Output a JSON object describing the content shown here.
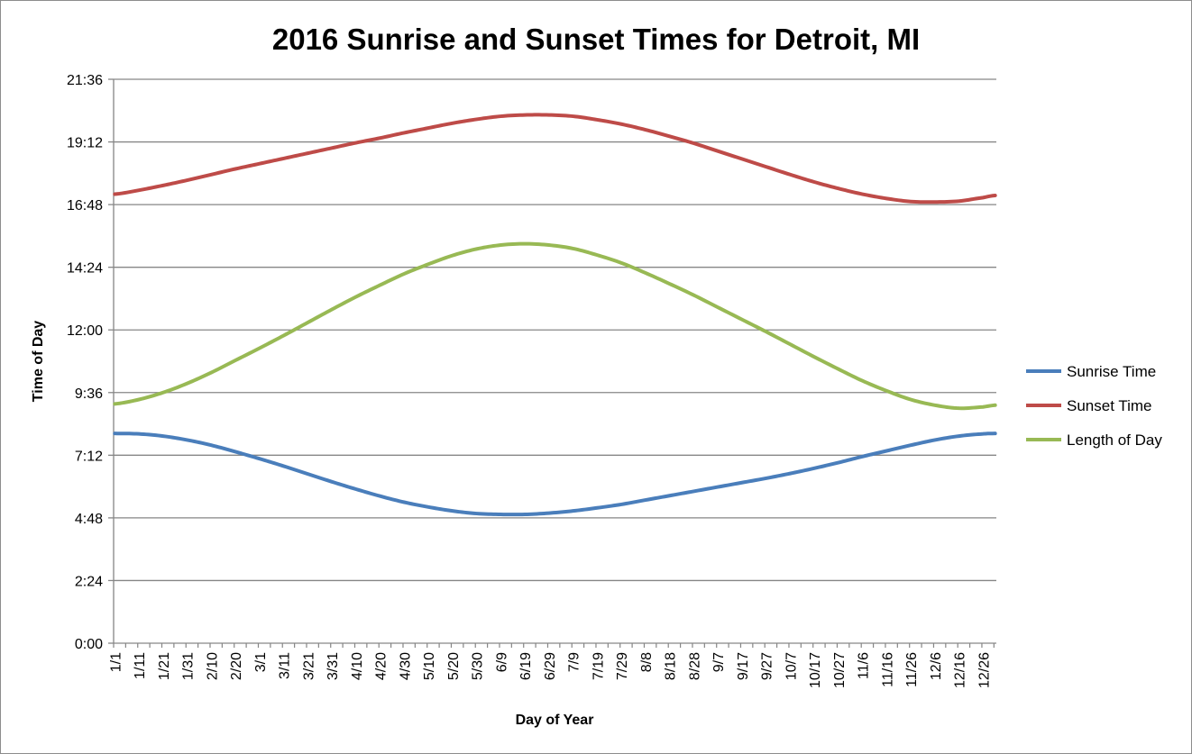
{
  "chart_data": {
    "type": "line",
    "title": "2016 Sunrise and Sunset Times for Detroit, MI",
    "xlabel": "Day of Year",
    "ylabel": "Time of Day",
    "ylim": [
      "0:00",
      "21:36"
    ],
    "y_ticks": [
      "0:00",
      "2:24",
      "4:48",
      "7:12",
      "9:36",
      "12:00",
      "14:24",
      "16:48",
      "19:12",
      "21:36"
    ],
    "x_ticks": [
      "1/1",
      "1/11",
      "1/21",
      "1/31",
      "2/10",
      "2/20",
      "3/1",
      "3/11",
      "3/21",
      "3/31",
      "4/10",
      "4/20",
      "4/30",
      "5/10",
      "5/20",
      "5/30",
      "6/9",
      "6/19",
      "6/29",
      "7/9",
      "7/19",
      "7/29",
      "8/8",
      "8/18",
      "8/28",
      "9/7",
      "9/17",
      "9/27",
      "10/7",
      "10/17",
      "10/27",
      "11/6",
      "11/16",
      "11/26",
      "12/6",
      "12/16",
      "12/26"
    ],
    "grid": true,
    "legend_position": "right",
    "x": [
      "1/1",
      "1/11",
      "1/21",
      "1/31",
      "2/10",
      "2/20",
      "3/1",
      "3/11",
      "3/21",
      "3/31",
      "4/10",
      "4/20",
      "4/30",
      "5/10",
      "5/20",
      "5/30",
      "6/9",
      "6/19",
      "6/29",
      "7/9",
      "7/19",
      "7/29",
      "8/8",
      "8/18",
      "8/28",
      "9/7",
      "9/17",
      "9/27",
      "10/7",
      "10/17",
      "10/27",
      "11/6",
      "11/16",
      "11/26",
      "12/6",
      "12/16",
      "12/26",
      "12/31"
    ],
    "series": [
      {
        "name": "Sunrise Time",
        "color": "#4a7ebb",
        "values": [
          "8:02",
          "8:01",
          "7:56",
          "7:47",
          "7:35",
          "7:20",
          "7:04",
          "6:47",
          "6:29",
          "6:11",
          "5:54",
          "5:38",
          "5:24",
          "5:13",
          "5:04",
          "4:58",
          "4:56",
          "4:56",
          "4:59",
          "5:04",
          "5:11",
          "5:19",
          "5:29",
          "5:39",
          "5:49",
          "5:59",
          "6:09",
          "6:19",
          "6:30",
          "6:42",
          "6:55",
          "7:09",
          "7:22",
          "7:35",
          "7:47",
          "7:56",
          "8:01",
          "8:02"
        ]
      },
      {
        "name": "Sunset Time",
        "color": "#be4b48",
        "values": [
          "17:12",
          "17:21",
          "17:32",
          "17:44",
          "17:57",
          "18:10",
          "18:22",
          "18:34",
          "18:46",
          "18:58",
          "19:10",
          "19:21",
          "19:33",
          "19:44",
          "19:55",
          "20:04",
          "20:11",
          "20:14",
          "20:14",
          "20:11",
          "20:03",
          "19:53",
          "19:40",
          "19:25",
          "19:09",
          "18:51",
          "18:33",
          "18:15",
          "17:57",
          "17:40",
          "17:25",
          "17:12",
          "17:02",
          "16:55",
          "16:54",
          "16:56",
          "17:04",
          "17:09"
        ]
      },
      {
        "name": "Length of Day",
        "color": "#98b954",
        "values": [
          "9:10",
          "9:20",
          "9:36",
          "9:57",
          "10:22",
          "10:50",
          "11:18",
          "11:47",
          "12:17",
          "12:47",
          "13:16",
          "13:43",
          "14:09",
          "14:31",
          "14:51",
          "15:06",
          "15:15",
          "15:18",
          "15:15",
          "15:07",
          "14:52",
          "14:34",
          "14:11",
          "13:46",
          "13:20",
          "12:52",
          "12:24",
          "11:56",
          "11:27",
          "10:58",
          "10:30",
          "10:03",
          "9:40",
          "9:20",
          "9:07",
          "9:00",
          "9:03",
          "9:07"
        ]
      }
    ]
  }
}
